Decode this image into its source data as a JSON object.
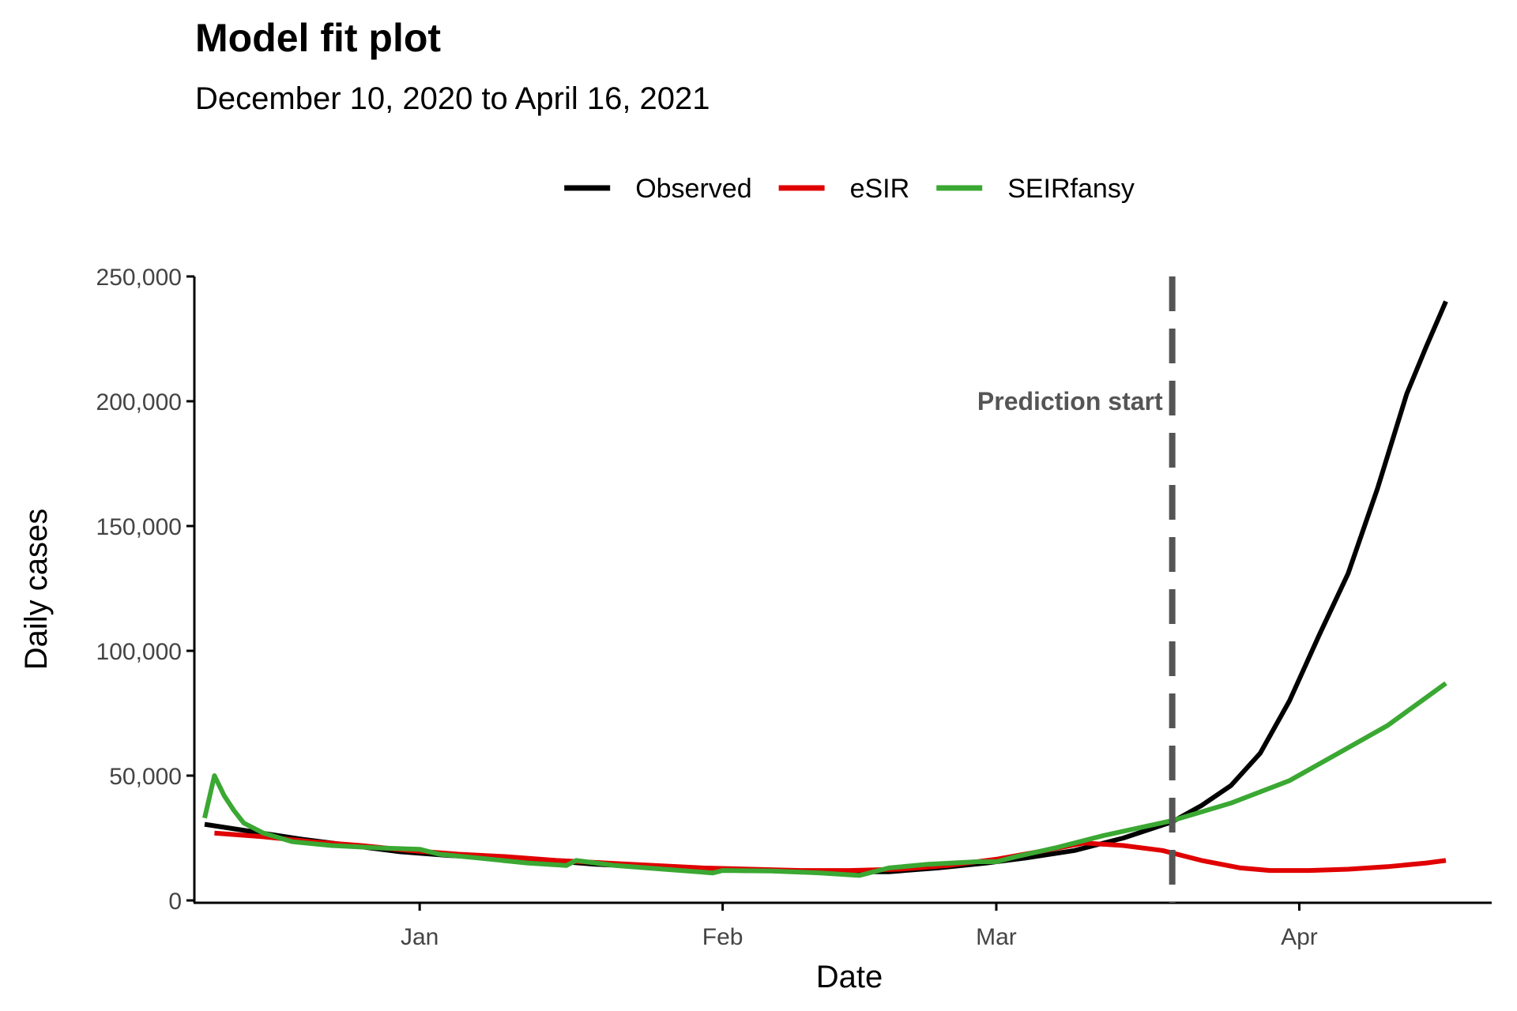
{
  "chart_data": {
    "type": "line",
    "title": "Model fit plot",
    "subtitle": "December 10, 2020 to April 16, 2021",
    "xlabel": "Date",
    "ylabel": "Daily cases",
    "xlim": [
      "2020-12-10",
      "2021-04-16"
    ],
    "ylim": [
      0,
      250000
    ],
    "x_ticks": [
      {
        "date": "2021-01-01",
        "label": "Jan"
      },
      {
        "date": "2021-02-01",
        "label": "Feb"
      },
      {
        "date": "2021-03-01",
        "label": "Mar"
      },
      {
        "date": "2021-04-01",
        "label": "Apr"
      }
    ],
    "y_ticks": [
      {
        "value": 0,
        "label": "0"
      },
      {
        "value": 50000,
        "label": "50,000"
      },
      {
        "value": 100000,
        "label": "100,000"
      },
      {
        "value": 150000,
        "label": "150,000"
      },
      {
        "value": 200000,
        "label": "200,000"
      },
      {
        "value": 250000,
        "label": "250,000"
      }
    ],
    "grid": false,
    "legend_position": "top",
    "annotation": {
      "date": "2021-03-19",
      "label": "Prediction start",
      "y": 200000,
      "color": "#555555"
    },
    "series": [
      {
        "name": "Observed",
        "color": "#000000",
        "points": [
          [
            "2020-12-10",
            30500
          ],
          [
            "2020-12-15",
            27500
          ],
          [
            "2020-12-20",
            24500
          ],
          [
            "2020-12-25",
            22000
          ],
          [
            "2020-12-30",
            19500
          ],
          [
            "2021-01-04",
            18000
          ],
          [
            "2021-01-09",
            17000
          ],
          [
            "2021-01-14",
            16000
          ],
          [
            "2021-01-19",
            14500
          ],
          [
            "2021-01-24",
            13500
          ],
          [
            "2021-01-29",
            12500
          ],
          [
            "2021-02-03",
            12000
          ],
          [
            "2021-02-08",
            11800
          ],
          [
            "2021-02-13",
            11500
          ],
          [
            "2021-02-18",
            11500
          ],
          [
            "2021-02-23",
            13000
          ],
          [
            "2021-02-28",
            15000
          ],
          [
            "2021-03-04",
            17000
          ],
          [
            "2021-03-09",
            20000
          ],
          [
            "2021-03-14",
            25000
          ],
          [
            "2021-03-19",
            31500
          ],
          [
            "2021-03-22",
            38000
          ],
          [
            "2021-03-25",
            46000
          ],
          [
            "2021-03-28",
            59000
          ],
          [
            "2021-03-31",
            80000
          ],
          [
            "2021-04-03",
            106000
          ],
          [
            "2021-04-06",
            131000
          ],
          [
            "2021-04-09",
            165000
          ],
          [
            "2021-04-12",
            203000
          ],
          [
            "2021-04-14",
            222000
          ],
          [
            "2021-04-16",
            240000
          ]
        ]
      },
      {
        "name": "eSIR",
        "color": "#e00000",
        "points": [
          [
            "2020-12-11",
            27000
          ],
          [
            "2020-12-16",
            25500
          ],
          [
            "2020-12-21",
            23500
          ],
          [
            "2020-12-26",
            22000
          ],
          [
            "2020-12-31",
            20000
          ],
          [
            "2021-01-05",
            18500
          ],
          [
            "2021-01-10",
            17500
          ],
          [
            "2021-01-15",
            16000
          ],
          [
            "2021-01-20",
            15000
          ],
          [
            "2021-01-25",
            14000
          ],
          [
            "2021-01-30",
            13000
          ],
          [
            "2021-02-04",
            12500
          ],
          [
            "2021-02-09",
            12000
          ],
          [
            "2021-02-14",
            12000
          ],
          [
            "2021-02-19",
            12500
          ],
          [
            "2021-02-24",
            14000
          ],
          [
            "2021-03-01",
            16500
          ],
          [
            "2021-03-06",
            20000
          ],
          [
            "2021-03-10",
            23000
          ],
          [
            "2021-03-14",
            22000
          ],
          [
            "2021-03-18",
            20000
          ],
          [
            "2021-03-22",
            16000
          ],
          [
            "2021-03-26",
            13000
          ],
          [
            "2021-03-29",
            12000
          ],
          [
            "2021-04-02",
            12000
          ],
          [
            "2021-04-06",
            12500
          ],
          [
            "2021-04-10",
            13500
          ],
          [
            "2021-04-14",
            15000
          ],
          [
            "2021-04-16",
            16000
          ]
        ]
      },
      {
        "name": "SEIRfansy",
        "color": "#3aa832",
        "points": [
          [
            "2020-12-10",
            33000
          ],
          [
            "2020-12-11",
            50000
          ],
          [
            "2020-12-12",
            42000
          ],
          [
            "2020-12-13",
            36000
          ],
          [
            "2020-12-14",
            31000
          ],
          [
            "2020-12-16",
            27000
          ],
          [
            "2020-12-19",
            23500
          ],
          [
            "2020-12-23",
            22000
          ],
          [
            "2020-12-28",
            21000
          ],
          [
            "2021-01-01",
            20500
          ],
          [
            "2021-01-03",
            18500
          ],
          [
            "2021-01-07",
            17000
          ],
          [
            "2021-01-12",
            15000
          ],
          [
            "2021-01-16",
            14000
          ],
          [
            "2021-01-17",
            16000
          ],
          [
            "2021-01-21",
            14000
          ],
          [
            "2021-01-26",
            12500
          ],
          [
            "2021-01-31",
            11000
          ],
          [
            "2021-02-01",
            12000
          ],
          [
            "2021-02-06",
            11800
          ],
          [
            "2021-02-11",
            11000
          ],
          [
            "2021-02-15",
            10000
          ],
          [
            "2021-02-18",
            13000
          ],
          [
            "2021-02-22",
            14500
          ],
          [
            "2021-02-27",
            15500
          ],
          [
            "2021-03-01",
            15500
          ],
          [
            "2021-03-03",
            17500
          ],
          [
            "2021-03-07",
            21000
          ],
          [
            "2021-03-12",
            26000
          ],
          [
            "2021-03-19",
            32000
          ],
          [
            "2021-03-25",
            39000
          ],
          [
            "2021-03-31",
            48000
          ],
          [
            "2021-04-05",
            59000
          ],
          [
            "2021-04-10",
            70000
          ],
          [
            "2021-04-16",
            87000
          ]
        ]
      }
    ]
  }
}
